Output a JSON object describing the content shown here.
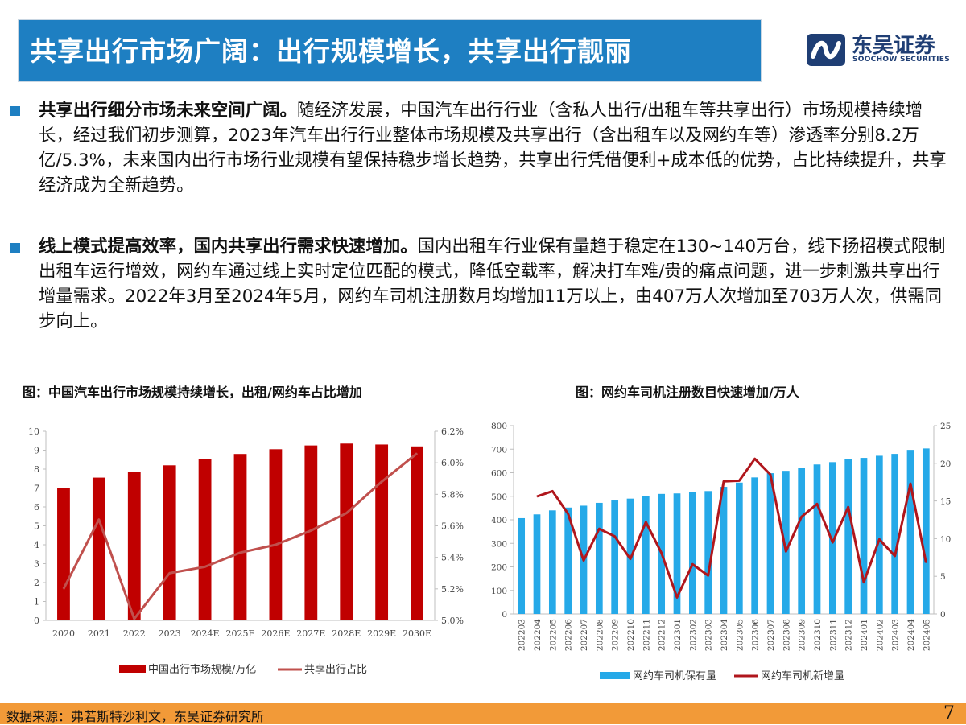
{
  "header": {
    "title": "共享出行市场广阔：出行规模增长，共享出行靓丽"
  },
  "logo": {
    "cn": "东吴证券",
    "en": "SOOCHOW SECURITIES"
  },
  "bullets": [
    {
      "bold": "共享出行细分市场未来空间广阔。",
      "text": "随经济发展，中国汽车出行行业（含私人出行/出租车等共享出行）市场规模持续增长，经过我们初步测算，2023年汽车出行行业整体市场规模及共享出行（含出租车以及网约车等）渗透率分别8.2万亿/5.3%，未来国内出行市场行业规模有望保持稳步增长趋势，共享出行凭借便利+成本低的优势，占比持续提升，共享经济成为全新趋势。"
    },
    {
      "bold": "线上模式提高效率，国内共享出行需求快速增加。",
      "text": "国内出租车行业保有量趋于稳定在130~140万台，线下扬招模式限制出租车运行增效，网约车通过线上实时定位匹配的模式，降低空载率，解决打车难/贵的痛点问题，进一步刺激共享出行增量需求。2022年3月至2024年5月，网约车司机注册数月均增加11万以上，由407万人次增加至703万人次，供需同步向上。"
    }
  ],
  "footer": {
    "source": "数据来源：弗若斯特沙利文，东吴证券研究所",
    "page": "7"
  },
  "colors": {
    "title_bar": "#1e7fc2",
    "bar_red": "#c00000",
    "line_red": "#c0504d",
    "bar_blue": "#25a9e8",
    "line_darkred": "#b0161c",
    "footer": "#f29a38"
  },
  "chart_data": [
    {
      "type": "bar",
      "title": "图：中国汽车出行市场规模持续增长，出租/网约车占比增加",
      "categories": [
        "2020",
        "2021",
        "2022",
        "2023",
        "2024E",
        "2025E",
        "2026E",
        "2027E",
        "2028E",
        "2029E",
        "2030E"
      ],
      "series": [
        {
          "name": "中国出行市场规模/万亿",
          "type": "bar",
          "axis": "left",
          "values": [
            7.0,
            7.55,
            7.85,
            8.2,
            8.55,
            8.8,
            9.05,
            9.25,
            9.35,
            9.3,
            9.2
          ]
        },
        {
          "name": "共享出行占比",
          "type": "line",
          "axis": "right",
          "values": [
            5.2,
            5.64,
            5.01,
            5.3,
            5.34,
            5.43,
            5.48,
            5.57,
            5.68,
            5.88,
            6.06
          ]
        }
      ],
      "y_left": {
        "min": 0,
        "max": 10,
        "ticks": [
          "0",
          "1",
          "2",
          "3",
          "4",
          "5",
          "6",
          "7",
          "8",
          "9",
          "10"
        ]
      },
      "y_right": {
        "min": 5.0,
        "max": 6.2,
        "ticks": [
          "5.0%",
          "5.2%",
          "5.4%",
          "5.6%",
          "5.8%",
          "6.0%",
          "6.2%"
        ]
      },
      "legend": "bottom"
    },
    {
      "type": "bar",
      "title": "图：网约车司机注册数目快速增加/万人",
      "categories": [
        "202203",
        "202204",
        "202205",
        "202206",
        "202207",
        "202208",
        "202209",
        "202210",
        "202211",
        "202212",
        "202301",
        "202302",
        "202303",
        "202304",
        "202305",
        "202306",
        "202307",
        "202308",
        "202309",
        "202310",
        "202311",
        "202312",
        "202401",
        "202402",
        "202403",
        "202404",
        "202405"
      ],
      "series": [
        {
          "name": "网约车司机保有量",
          "type": "bar",
          "axis": "left",
          "values": [
            407,
            423,
            440,
            452,
            460,
            472,
            482,
            490,
            502,
            510,
            512,
            517,
            522,
            540,
            558,
            580,
            598,
            608,
            622,
            635,
            645,
            657,
            663,
            672,
            680,
            697,
            703
          ]
        },
        {
          "name": "网约车司机新增量",
          "type": "line",
          "axis": "right",
          "values": [
            null,
            15.6,
            16.3,
            13.3,
            7.1,
            11.3,
            10.3,
            7.3,
            12.2,
            8.1,
            2.2,
            6.6,
            5.1,
            17.6,
            17.7,
            20.6,
            18.5,
            8.3,
            12.9,
            14.6,
            9.5,
            14.2,
            4.2,
            9.9,
            7.7,
            17.3,
            6.8
          ]
        }
      ],
      "y_left": {
        "min": 0,
        "max": 800,
        "ticks": [
          "0",
          "100",
          "200",
          "300",
          "400",
          "500",
          "600",
          "700",
          "800"
        ]
      },
      "y_right": {
        "min": 0,
        "max": 25,
        "ticks": [
          "0",
          "5",
          "10",
          "15",
          "20",
          "25"
        ]
      },
      "legend": "bottom"
    }
  ]
}
